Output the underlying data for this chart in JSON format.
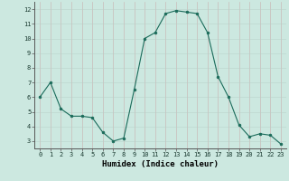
{
  "x": [
    0,
    1,
    2,
    3,
    4,
    5,
    6,
    7,
    8,
    9,
    10,
    11,
    12,
    13,
    14,
    15,
    16,
    17,
    18,
    19,
    20,
    21,
    22,
    23
  ],
  "y": [
    6.0,
    7.0,
    5.2,
    4.7,
    4.7,
    4.6,
    3.6,
    3.0,
    3.2,
    6.5,
    10.0,
    10.4,
    11.7,
    11.9,
    11.8,
    11.7,
    10.4,
    7.4,
    6.0,
    4.1,
    3.3,
    3.5,
    3.4,
    2.8
  ],
  "line_color": "#1a6b5a",
  "marker": "o",
  "marker_size": 2,
  "bg_color": "#cce8e0",
  "grid_color": "#b8d8d0",
  "xlabel": "Humidex (Indice chaleur)",
  "xlim": [
    -0.5,
    23.5
  ],
  "ylim": [
    2.5,
    12.5
  ],
  "yticks": [
    3,
    4,
    5,
    6,
    7,
    8,
    9,
    10,
    11,
    12
  ],
  "xticks": [
    0,
    1,
    2,
    3,
    4,
    5,
    6,
    7,
    8,
    9,
    10,
    11,
    12,
    13,
    14,
    15,
    16,
    17,
    18,
    19,
    20,
    21,
    22,
    23
  ],
  "tick_fontsize": 5,
  "xlabel_fontsize": 6.5
}
